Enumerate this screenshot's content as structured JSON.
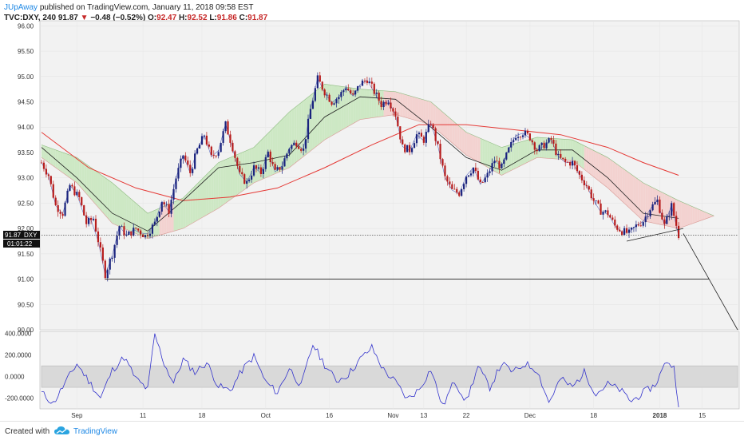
{
  "header": {
    "author": "JUpAway",
    "published": "published on TradingView.com, January 11, 2018 09:58 EST",
    "symbol": "TVC:DXY, 240",
    "last": "91.87",
    "arrow": "▼",
    "change": "−0.48 (−0.52%)",
    "ohlc": {
      "o_label": "O:",
      "o": "92.47",
      "h_label": "H:",
      "h": "92.52",
      "l_label": "L:",
      "l": "91.86",
      "c_label": "C:",
      "c": "91.87"
    }
  },
  "footer": {
    "created_with": "Created with",
    "brand": "TradingView"
  },
  "colors": {
    "candle_up": "#1a237e",
    "candle_down": "#b71c1c",
    "ma_long": "#e53935",
    "ma_short": "#212121",
    "conversion": "#3f51b5",
    "cloud_bull": "#cde8c4",
    "cloud_bear": "#f3d2d0",
    "cci": "#3333cc",
    "band": "#d9d9d9"
  },
  "price_tag": {
    "value": "91.87",
    "label": "DXY",
    "countdown": "01:01:22"
  },
  "chart_data": [
    {
      "type": "candlestick",
      "title": "TVC:DXY, 240",
      "ylim": [
        90.0,
        96.1
      ],
      "y_ticks": [
        "96.00",
        "95.50",
        "95.00",
        "94.50",
        "94.00",
        "93.50",
        "93.00",
        "92.50",
        "92.00",
        "91.50",
        "91.00",
        "90.50",
        "90.00"
      ],
      "x_ticks": [
        "Sep",
        "11",
        "18",
        "Oct",
        "16",
        "Nov",
        "13",
        "22",
        "Dec",
        "18",
        "2018",
        "15"
      ],
      "close_path": [
        {
          "t": 0,
          "v": 93.3
        },
        {
          "t": 3,
          "v": 93.05
        },
        {
          "t": 6,
          "v": 92.45
        },
        {
          "t": 9,
          "v": 92.3
        },
        {
          "t": 12,
          "v": 92.85
        },
        {
          "t": 16,
          "v": 92.6
        },
        {
          "t": 19,
          "v": 92.1
        },
        {
          "t": 22,
          "v": 92.2
        },
        {
          "t": 25,
          "v": 91.55
        },
        {
          "t": 27,
          "v": 91.1
        },
        {
          "t": 30,
          "v": 91.5
        },
        {
          "t": 33,
          "v": 92.05
        },
        {
          "t": 36,
          "v": 91.85
        },
        {
          "t": 40,
          "v": 92.0
        },
        {
          "t": 44,
          "v": 91.85
        },
        {
          "t": 48,
          "v": 92.1
        },
        {
          "t": 51,
          "v": 92.55
        },
        {
          "t": 54,
          "v": 92.35
        },
        {
          "t": 57,
          "v": 93.0
        },
        {
          "t": 60,
          "v": 93.45
        },
        {
          "t": 63,
          "v": 93.1
        },
        {
          "t": 66,
          "v": 93.55
        },
        {
          "t": 69,
          "v": 93.85
        },
        {
          "t": 72,
          "v": 93.4
        },
        {
          "t": 75,
          "v": 93.55
        },
        {
          "t": 78,
          "v": 94.05
        },
        {
          "t": 81,
          "v": 93.6
        },
        {
          "t": 84,
          "v": 93.05
        },
        {
          "t": 87,
          "v": 92.9
        },
        {
          "t": 90,
          "v": 93.2
        },
        {
          "t": 93,
          "v": 93.1
        },
        {
          "t": 96,
          "v": 93.5
        },
        {
          "t": 99,
          "v": 93.1
        },
        {
          "t": 102,
          "v": 93.25
        },
        {
          "t": 105,
          "v": 93.6
        },
        {
          "t": 108,
          "v": 93.7
        },
        {
          "t": 111,
          "v": 93.55
        },
        {
          "t": 114,
          "v": 94.35
        },
        {
          "t": 117,
          "v": 94.95
        },
        {
          "t": 120,
          "v": 94.7
        },
        {
          "t": 123,
          "v": 94.5
        },
        {
          "t": 126,
          "v": 94.6
        },
        {
          "t": 129,
          "v": 94.8
        },
        {
          "t": 132,
          "v": 94.6
        },
        {
          "t": 135,
          "v": 94.85
        },
        {
          "t": 138,
          "v": 94.95
        },
        {
          "t": 141,
          "v": 94.7
        },
        {
          "t": 144,
          "v": 94.45
        },
        {
          "t": 147,
          "v": 94.55
        },
        {
          "t": 150,
          "v": 94.25
        },
        {
          "t": 153,
          "v": 93.6
        },
        {
          "t": 156,
          "v": 93.55
        },
        {
          "t": 159,
          "v": 93.85
        },
        {
          "t": 162,
          "v": 93.75
        },
        {
          "t": 165,
          "v": 94.1
        },
        {
          "t": 168,
          "v": 93.6
        },
        {
          "t": 171,
          "v": 93.0
        },
        {
          "t": 174,
          "v": 92.75
        },
        {
          "t": 177,
          "v": 92.7
        },
        {
          "t": 180,
          "v": 93.05
        },
        {
          "t": 183,
          "v": 93.2
        },
        {
          "t": 186,
          "v": 92.85
        },
        {
          "t": 189,
          "v": 93.05
        },
        {
          "t": 192,
          "v": 93.35
        },
        {
          "t": 195,
          "v": 93.2
        },
        {
          "t": 198,
          "v": 93.55
        },
        {
          "t": 201,
          "v": 93.85
        },
        {
          "t": 204,
          "v": 93.9
        },
        {
          "t": 207,
          "v": 93.8
        },
        {
          "t": 210,
          "v": 93.55
        },
        {
          "t": 213,
          "v": 93.65
        },
        {
          "t": 216,
          "v": 93.75
        },
        {
          "t": 219,
          "v": 93.4
        },
        {
          "t": 222,
          "v": 93.3
        },
        {
          "t": 225,
          "v": 93.3
        },
        {
          "t": 228,
          "v": 93.05
        },
        {
          "t": 231,
          "v": 92.85
        },
        {
          "t": 234,
          "v": 92.55
        },
        {
          "t": 237,
          "v": 92.35
        },
        {
          "t": 240,
          "v": 92.3
        },
        {
          "t": 243,
          "v": 92.05
        },
        {
          "t": 246,
          "v": 91.95
        },
        {
          "t": 249,
          "v": 91.9
        },
        {
          "t": 252,
          "v": 92.05
        },
        {
          "t": 255,
          "v": 92.15
        },
        {
          "t": 258,
          "v": 92.4
        },
        {
          "t": 261,
          "v": 92.55
        },
        {
          "t": 264,
          "v": 92.05
        },
        {
          "t": 267,
          "v": 92.45
        },
        {
          "t": 270,
          "v": 91.87
        }
      ],
      "ma_long_path": [
        {
          "t": 0,
          "v": 93.9
        },
        {
          "t": 20,
          "v": 93.2
        },
        {
          "t": 40,
          "v": 92.8
        },
        {
          "t": 60,
          "v": 92.55
        },
        {
          "t": 80,
          "v": 92.62
        },
        {
          "t": 100,
          "v": 92.8
        },
        {
          "t": 120,
          "v": 93.2
        },
        {
          "t": 140,
          "v": 93.65
        },
        {
          "t": 160,
          "v": 94.05
        },
        {
          "t": 180,
          "v": 94.05
        },
        {
          "t": 200,
          "v": 93.95
        },
        {
          "t": 220,
          "v": 93.85
        },
        {
          "t": 240,
          "v": 93.6
        },
        {
          "t": 255,
          "v": 93.3
        },
        {
          "t": 270,
          "v": 93.05
        }
      ],
      "ma_short_path": [
        {
          "t": 0,
          "v": 93.6
        },
        {
          "t": 15,
          "v": 93.0
        },
        {
          "t": 30,
          "v": 92.3
        },
        {
          "t": 45,
          "v": 91.95
        },
        {
          "t": 60,
          "v": 92.55
        },
        {
          "t": 75,
          "v": 93.2
        },
        {
          "t": 90,
          "v": 93.3
        },
        {
          "t": 105,
          "v": 93.45
        },
        {
          "t": 120,
          "v": 94.2
        },
        {
          "t": 135,
          "v": 94.6
        },
        {
          "t": 150,
          "v": 94.55
        },
        {
          "t": 165,
          "v": 94.0
        },
        {
          "t": 180,
          "v": 93.4
        },
        {
          "t": 195,
          "v": 93.15
        },
        {
          "t": 210,
          "v": 93.55
        },
        {
          "t": 225,
          "v": 93.55
        },
        {
          "t": 240,
          "v": 93.0
        },
        {
          "t": 255,
          "v": 92.3
        },
        {
          "t": 270,
          "v": 92.2
        }
      ],
      "cloud": {
        "upper": [
          {
            "t": 0,
            "v": 93.65
          },
          {
            "t": 15,
            "v": 93.4
          },
          {
            "t": 30,
            "v": 92.9
          },
          {
            "t": 45,
            "v": 92.3
          },
          {
            "t": 60,
            "v": 92.6
          },
          {
            "t": 75,
            "v": 93.3
          },
          {
            "t": 90,
            "v": 93.6
          },
          {
            "t": 105,
            "v": 94.3
          },
          {
            "t": 120,
            "v": 94.85
          },
          {
            "t": 135,
            "v": 94.75
          },
          {
            "t": 150,
            "v": 94.7
          },
          {
            "t": 165,
            "v": 94.5
          },
          {
            "t": 180,
            "v": 93.9
          },
          {
            "t": 195,
            "v": 93.6
          },
          {
            "t": 210,
            "v": 93.8
          },
          {
            "t": 225,
            "v": 93.75
          },
          {
            "t": 240,
            "v": 93.4
          },
          {
            "t": 255,
            "v": 92.9
          },
          {
            "t": 270,
            "v": 92.55
          },
          {
            "t": 285,
            "v": 92.25
          }
        ],
        "lower": [
          {
            "t": 0,
            "v": 93.4
          },
          {
            "t": 15,
            "v": 92.9
          },
          {
            "t": 30,
            "v": 92.1
          },
          {
            "t": 45,
            "v": 91.8
          },
          {
            "t": 60,
            "v": 92.0
          },
          {
            "t": 75,
            "v": 92.4
          },
          {
            "t": 90,
            "v": 92.9
          },
          {
            "t": 105,
            "v": 93.2
          },
          {
            "t": 120,
            "v": 93.75
          },
          {
            "t": 135,
            "v": 94.15
          },
          {
            "t": 150,
            "v": 94.25
          },
          {
            "t": 165,
            "v": 94.05
          },
          {
            "t": 180,
            "v": 93.45
          },
          {
            "t": 195,
            "v": 93.05
          },
          {
            "t": 210,
            "v": 93.4
          },
          {
            "t": 225,
            "v": 93.35
          },
          {
            "t": 240,
            "v": 92.8
          },
          {
            "t": 255,
            "v": 92.15
          },
          {
            "t": 270,
            "v": 92.0
          },
          {
            "t": 285,
            "v": 92.25
          }
        ]
      },
      "annotations": [
        {
          "type": "horizontal_line",
          "value": 91.0
        },
        {
          "type": "trendline",
          "from": {
            "t": 248,
            "v": 91.75
          },
          "to": {
            "t": 272,
            "v": 92.0
          }
        },
        {
          "type": "projection_line",
          "from": {
            "t": 272,
            "v": 91.9
          },
          "to": {
            "t": 295,
            "v": 90.0
          }
        }
      ]
    },
    {
      "type": "line",
      "title": "",
      "ylim": [
        -300.0,
        420.0
      ],
      "y_ticks": [
        "400.0000",
        "200.0000",
        "0.0000",
        "-200.0000"
      ],
      "band": [
        -100,
        100
      ],
      "values": [
        {
          "t": 0,
          "v": -150
        },
        {
          "t": 5,
          "v": -250
        },
        {
          "t": 10,
          "v": -60
        },
        {
          "t": 15,
          "v": 120
        },
        {
          "t": 20,
          "v": -40
        },
        {
          "t": 25,
          "v": -200
        },
        {
          "t": 30,
          "v": 60
        },
        {
          "t": 35,
          "v": 180
        },
        {
          "t": 40,
          "v": -20
        },
        {
          "t": 45,
          "v": -120
        },
        {
          "t": 48,
          "v": 390
        },
        {
          "t": 52,
          "v": 120
        },
        {
          "t": 56,
          "v": -60
        },
        {
          "t": 60,
          "v": 160
        },
        {
          "t": 65,
          "v": 40
        },
        {
          "t": 70,
          "v": 130
        },
        {
          "t": 75,
          "v": -90
        },
        {
          "t": 80,
          "v": -130
        },
        {
          "t": 85,
          "v": 60
        },
        {
          "t": 90,
          "v": 190
        },
        {
          "t": 95,
          "v": -50
        },
        {
          "t": 100,
          "v": -150
        },
        {
          "t": 105,
          "v": 80
        },
        {
          "t": 110,
          "v": -90
        },
        {
          "t": 115,
          "v": 300
        },
        {
          "t": 120,
          "v": 110
        },
        {
          "t": 125,
          "v": -40
        },
        {
          "t": 130,
          "v": 20
        },
        {
          "t": 135,
          "v": 160
        },
        {
          "t": 140,
          "v": 270
        },
        {
          "t": 145,
          "v": 60
        },
        {
          "t": 150,
          "v": -50
        },
        {
          "t": 155,
          "v": -210
        },
        {
          "t": 160,
          "v": -120
        },
        {
          "t": 165,
          "v": 70
        },
        {
          "t": 170,
          "v": -280
        },
        {
          "t": 175,
          "v": -40
        },
        {
          "t": 180,
          "v": -230
        },
        {
          "t": 185,
          "v": 90
        },
        {
          "t": 190,
          "v": -100
        },
        {
          "t": 195,
          "v": 120
        },
        {
          "t": 200,
          "v": 40
        },
        {
          "t": 205,
          "v": 120
        },
        {
          "t": 210,
          "v": 60
        },
        {
          "t": 215,
          "v": -240
        },
        {
          "t": 220,
          "v": -20
        },
        {
          "t": 225,
          "v": -100
        },
        {
          "t": 230,
          "v": 40
        },
        {
          "t": 235,
          "v": -160
        },
        {
          "t": 240,
          "v": -70
        },
        {
          "t": 245,
          "v": -120
        },
        {
          "t": 250,
          "v": -230
        },
        {
          "t": 255,
          "v": -150
        },
        {
          "t": 260,
          "v": -80
        },
        {
          "t": 265,
          "v": 150
        },
        {
          "t": 268,
          "v": 80
        },
        {
          "t": 270,
          "v": -250
        }
      ]
    }
  ]
}
